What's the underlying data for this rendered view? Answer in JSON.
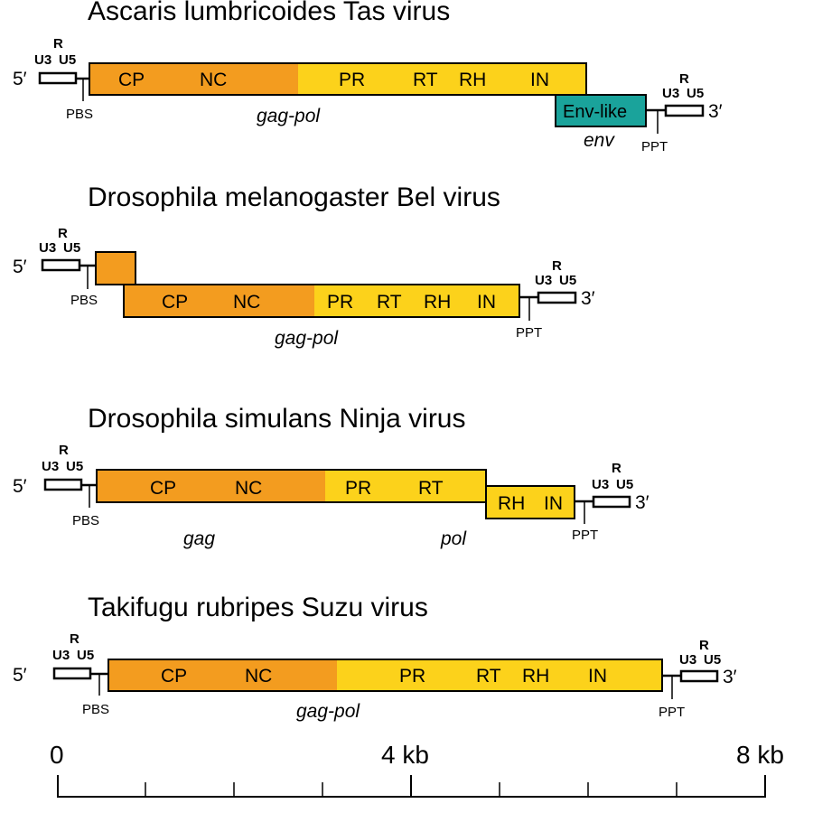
{
  "colors": {
    "gag": "#F39C1F",
    "pol": "#FCD21B",
    "env": "#1AA39B",
    "stroke": "#000000"
  },
  "genomes": [
    {
      "title": "Ascaris lumbricoides Tas virus",
      "five_prime": "5′",
      "three_prime": "3′",
      "ltr5": {
        "r": "R",
        "u3": "U3",
        "u5": "U5"
      },
      "ltr3": {
        "r": "R",
        "u3": "U3",
        "u5": "U5"
      },
      "pbs": "PBS",
      "ppt": "PPT",
      "domains": [
        "CP",
        "NC",
        "PR",
        "RT",
        "RH",
        "IN"
      ],
      "env_domain": "Env-like",
      "genes": [
        "gag-pol",
        "env"
      ]
    },
    {
      "title": "Drosophila melanogaster Bel virus",
      "five_prime": "5′",
      "three_prime": "3′",
      "ltr5": {
        "r": "R",
        "u3": "U3",
        "u5": "U5"
      },
      "ltr3": {
        "r": "R",
        "u3": "U3",
        "u5": "U5"
      },
      "pbs": "PBS",
      "ppt": "PPT",
      "domains": [
        "CP",
        "NC",
        "PR",
        "RT",
        "RH",
        "IN"
      ],
      "genes": [
        "gag-pol"
      ]
    },
    {
      "title": "Drosophila simulans Ninja virus",
      "five_prime": "5′",
      "three_prime": "3′",
      "ltr5": {
        "r": "R",
        "u3": "U3",
        "u5": "U5"
      },
      "ltr3": {
        "r": "R",
        "u3": "U3",
        "u5": "U5"
      },
      "pbs": "PBS",
      "ppt": "PPT",
      "domains": [
        "CP",
        "NC",
        "PR",
        "RT",
        "RH",
        "IN"
      ],
      "genes": [
        "gag",
        "pol"
      ]
    },
    {
      "title": "Takifugu rubripes Suzu virus",
      "five_prime": "5′",
      "three_prime": "3′",
      "ltr5": {
        "r": "R",
        "u3": "U3",
        "u5": "U5"
      },
      "ltr3": {
        "r": "R",
        "u3": "U3",
        "u5": "U5"
      },
      "pbs": "PBS",
      "ppt": "PPT",
      "domains": [
        "CP",
        "NC",
        "PR",
        "RT",
        "RH",
        "IN"
      ],
      "genes": [
        "gag-pol"
      ]
    }
  ],
  "scale_bar": {
    "labels": [
      "0",
      "4 kb",
      "8 kb"
    ]
  }
}
